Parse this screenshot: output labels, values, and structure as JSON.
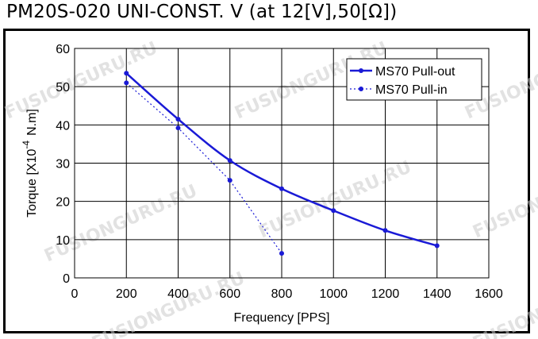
{
  "title": "PM20S-020 UNI-CONST. V (at 12[V],50[Ω])",
  "watermark": "FUSIONGURU.RU",
  "chart_data": {
    "type": "line",
    "xlabel": "Frequency [PPS]",
    "ylabel_main": "Torque [X10",
    "ylabel_exp": "-4",
    "ylabel_unit": "N.m]",
    "xlim": [
      0,
      1600
    ],
    "ylim": [
      0,
      60
    ],
    "xticks": [
      "0",
      "200",
      "400",
      "600",
      "800",
      "1000",
      "1200",
      "1400",
      "1600"
    ],
    "yticks": [
      "0",
      "10",
      "20",
      "30",
      "40",
      "50",
      "60"
    ],
    "grid": true,
    "legend_position": "top-right",
    "series": [
      {
        "name": "MS70 Pull-out",
        "style": "solid",
        "color": "#1a1ad6",
        "x": [
          200,
          400,
          600,
          800,
          1000,
          1200,
          1400
        ],
        "y": [
          53.5,
          41.5,
          30.7,
          23.3,
          17.6,
          12.4,
          8.4
        ]
      },
      {
        "name": "MS70 Pull-in",
        "style": "dotted",
        "color": "#1a1ad6",
        "x": [
          200,
          400,
          600,
          800
        ],
        "y": [
          51,
          39.2,
          25.5,
          6.4
        ]
      }
    ]
  }
}
